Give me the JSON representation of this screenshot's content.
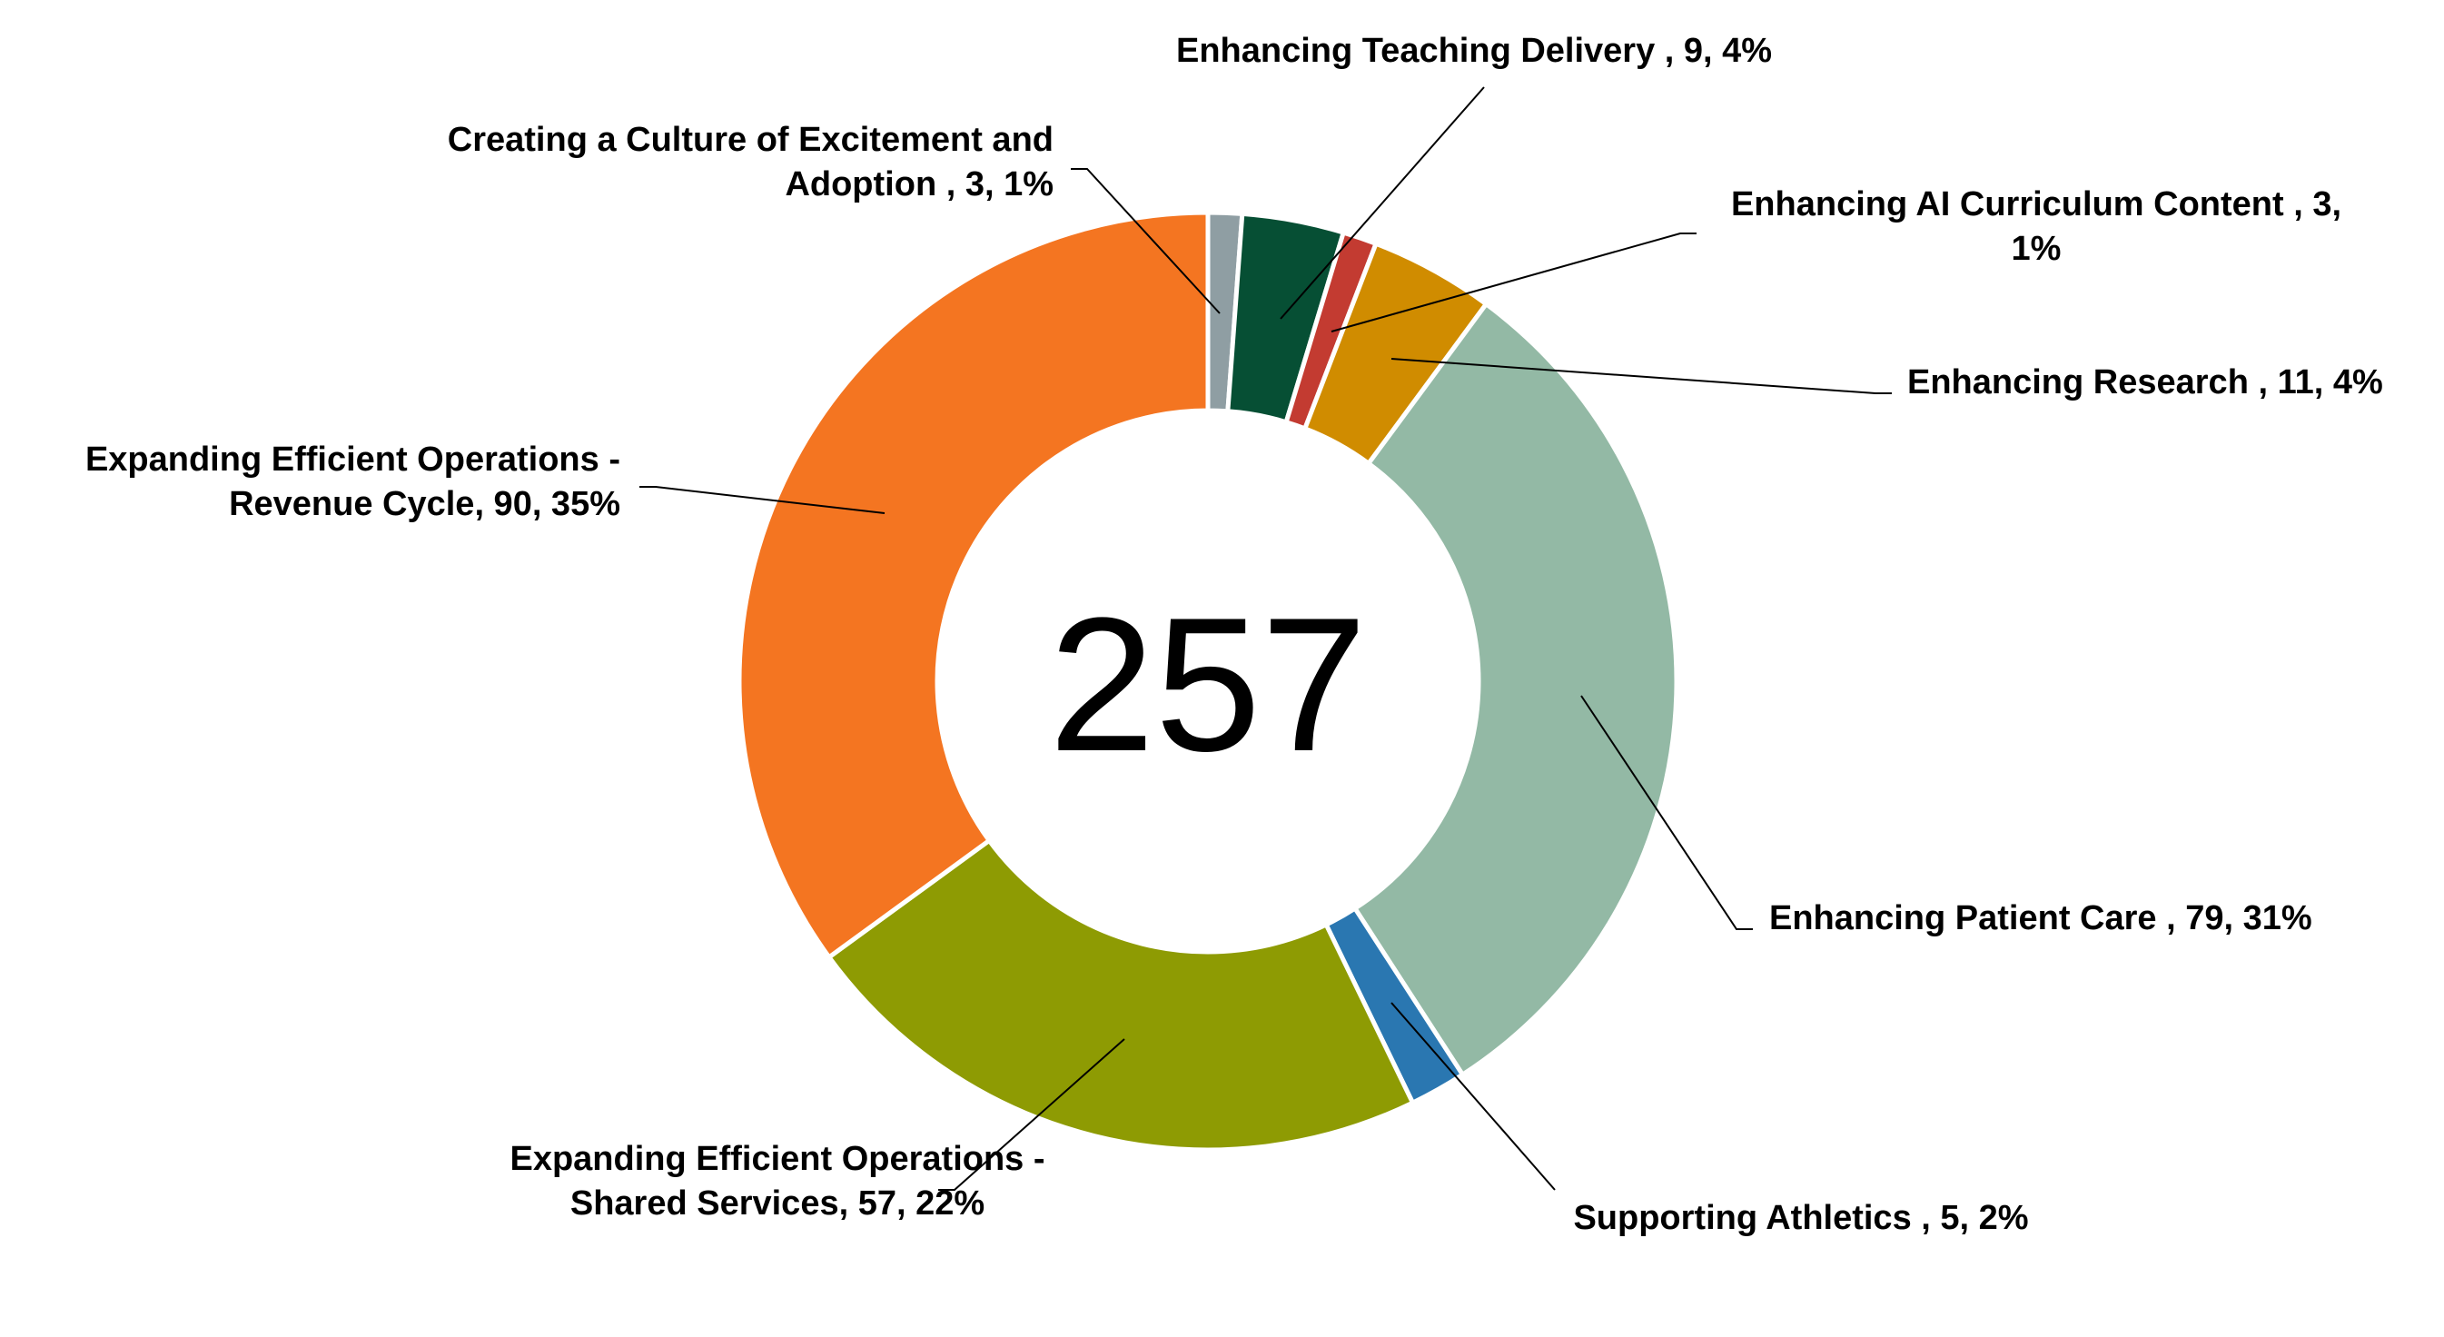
{
  "chart_data": {
    "type": "pie",
    "variant": "donut",
    "center_text": "257",
    "total": 257,
    "slices": [
      {
        "name": "Creating a Culture of Excitement and Adoption",
        "value": 3,
        "percent": "1%",
        "color": "#8f9ea3",
        "label_lines": [
          "Creating a Culture of Excitement and",
          "Adoption , 3, 1%"
        ]
      },
      {
        "name": "Enhancing Teaching Delivery",
        "value": 9,
        "percent": "4%",
        "color": "#064f34",
        "label_lines": [
          "Enhancing Teaching Delivery , 9, 4%"
        ]
      },
      {
        "name": "Enhancing AI Curriculum Content",
        "value": 3,
        "percent": "1%",
        "color": "#c33b31",
        "label_lines": [
          "Enhancing AI Curriculum Content , 3,",
          "1%"
        ]
      },
      {
        "name": "Enhancing Research",
        "value": 11,
        "percent": "4%",
        "color": "#d08c00",
        "label_lines": [
          "Enhancing Research , 11, 4%"
        ]
      },
      {
        "name": "Enhancing Patient Care",
        "value": 79,
        "percent": "31%",
        "color": "#93b9a5",
        "label_lines": [
          "Enhancing Patient Care , 79, 31%"
        ]
      },
      {
        "name": "Supporting Athletics",
        "value": 5,
        "percent": "2%",
        "color": "#2a77b1",
        "label_lines": [
          "Supporting Athletics , 5, 2%"
        ]
      },
      {
        "name": "Expanding Efficient Operations - Shared Services",
        "value": 57,
        "percent": "22%",
        "color": "#8e9b03",
        "label_lines": [
          "Expanding Efficient Operations -",
          "Shared Services, 57, 22%"
        ]
      },
      {
        "name": "Expanding Efficient Operations - Revenue Cycle",
        "value": 90,
        "percent": "35%",
        "color": "#f47521",
        "label_lines": [
          "Expanding Efficient Operations -",
          "Revenue Cycle, 90, 35%"
        ]
      }
    ]
  }
}
